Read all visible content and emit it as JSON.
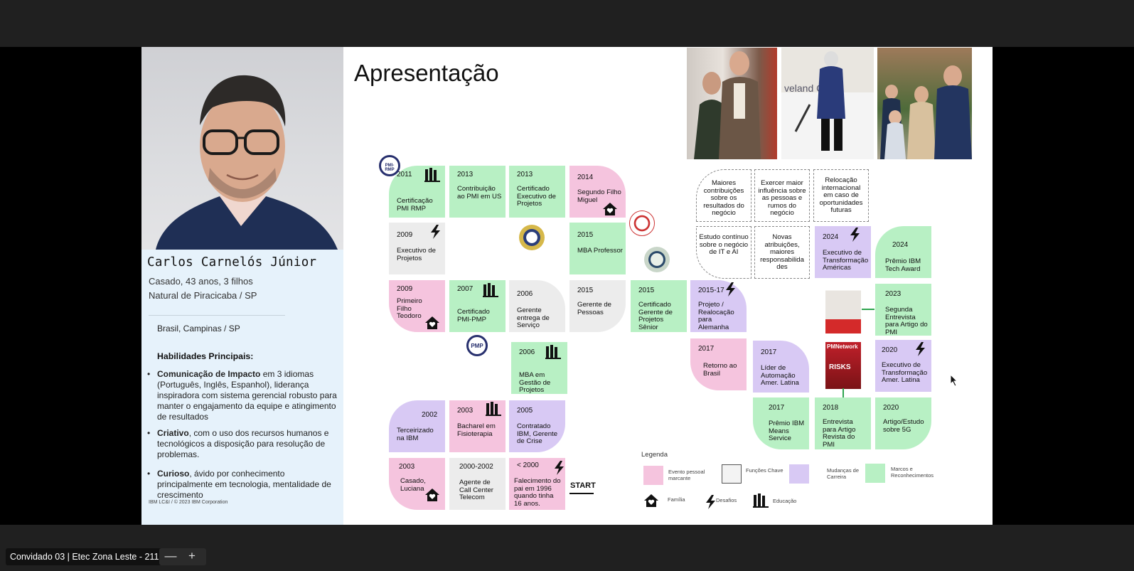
{
  "window": {
    "participant_label": "Convidado 03 | Etec Zona Leste - 211",
    "zoom_out": "—",
    "zoom_in": "+"
  },
  "slide": {
    "title": "Apresentação",
    "name": "Carlos Carnelós Júnior",
    "status": "Casado, 43 anos, 3 filhos",
    "origin": "Natural de Piracicaba / SP",
    "location": "Brasil, Campinas / SP",
    "skills_heading": "Habilidades Principais:",
    "skills": [
      {
        "bold": "Comunicação de Impacto",
        "rest": " em 3 idiomas (Português, Inglês, Espanhol), liderança inspiradora com sistema gerencial robusto para manter o engajamento  da equipe e atingimento de resultados"
      },
      {
        "bold": "Criativo",
        "rest": ", com o uso dos recursos humanos e tecnológicos a disposição para resolução de problemas."
      },
      {
        "bold": "Curioso",
        "rest": ", ávido por conhecimento principalmente em tecnologia, mentalidade de crescimento"
      }
    ],
    "footer": "IBM LC&I / © 2023 IBM Corporation",
    "start_label": "START",
    "legend_title": "Legenda",
    "legend": {
      "pink": "Evento pessoal marcante",
      "white": "Funções Chave",
      "purple": "Mudanças de Carreira",
      "green": "Marcos e Reconhecimentos",
      "family": "Família",
      "challenge": "Desafios",
      "education": "Educação"
    },
    "tiles": [
      {
        "year": "2011",
        "text": "Certificação PMI RMP"
      },
      {
        "year": "2013",
        "text": "Contribuição ao PMI em US"
      },
      {
        "year": "2013",
        "text": "Certificado Executivo de Projetos"
      },
      {
        "year": "2014",
        "text": "Segundo Filho Miguel"
      },
      {
        "year": "2009",
        "text": "Executivo de Projetos"
      },
      {
        "year": "2015",
        "text": "MBA Professor"
      },
      {
        "year": "2009",
        "text": "Primeiro Filho Teodoro"
      },
      {
        "year": "2007",
        "text": "Certificado PMI-PMP"
      },
      {
        "year": "2006",
        "text": "Gerente entrega de Serviço"
      },
      {
        "year": "2015",
        "text": "Gerente de Pessoas"
      },
      {
        "year": "2015",
        "text": "Certificado Gerente de Projetos Sênior"
      },
      {
        "year": "2015-17",
        "text": "Projeto / Realocação para Alemanha"
      },
      {
        "year": "2006",
        "text": "MBA em Gestão de Projetos"
      },
      {
        "year": "2017",
        "text": "Retorno ao Brasil"
      },
      {
        "year": "2017",
        "text": "Líder de Automação Amer. Latina"
      },
      {
        "year": "2002",
        "text": "Terceirizado na IBM"
      },
      {
        "year": "2003",
        "text": "Bacharel em Fisioterapia"
      },
      {
        "year": "2005",
        "text": "Contratado IBM, Gerente de Crise"
      },
      {
        "year": "2003",
        "text": "Casado, Luciana"
      },
      {
        "year": "2000-2002",
        "text": "Agente de Call Center Telecom"
      },
      {
        "year": "< 2000",
        "text": "Falecimento do pai em 1996 quando tinha 16 anos."
      },
      {
        "year": "2017",
        "text": "Prêmio IBM Means Service"
      },
      {
        "year": "2018",
        "text": "Entrevista para Artigo Revista do PMI"
      },
      {
        "year": "2020",
        "text": "Artigo/Estudo sobre 5G"
      },
      {
        "year": "2020",
        "text": "Executivo de Transformação Amer. Latina"
      },
      {
        "year": "2023",
        "text": "Segunda Entrevista para Artigo do PMI"
      },
      {
        "year": "2024",
        "text": "Executivo de Transformação Américas"
      },
      {
        "year": "2024",
        "text": "Prêmio IBM Tech Award"
      }
    ],
    "future": [
      "Maiores contribuições sobre os resultados do negócio",
      "Exercer maior influência sobre as pessoas e rumos do negócio",
      "Relocação internacional em caso de oportunidades futuras",
      "Estudo contínuo sobre o negócio de IT e AI",
      "Novas atribuições, maiores responsabilida des"
    ],
    "badges": {
      "rmp": "PMI-RMP",
      "pmp": "PMP"
    },
    "magazine": {
      "brand": "PMNetwork",
      "cover_word": "RISKS"
    }
  }
}
